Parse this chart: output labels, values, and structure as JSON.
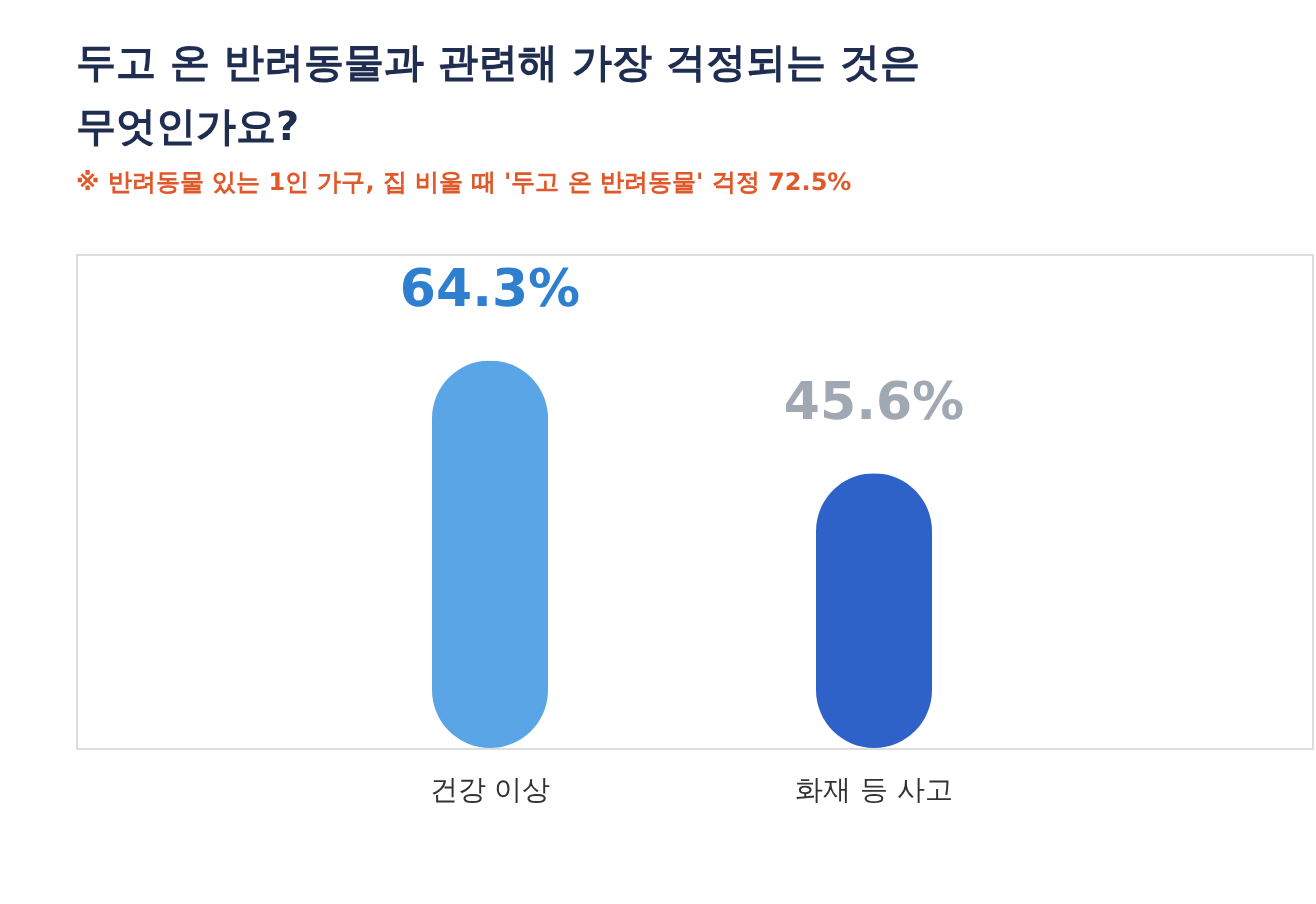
{
  "chart_data": {
    "type": "bar",
    "title": [
      "두고 온 반려동물과 관련해 가장 걱정되는 것은",
      "무엇인가요?"
    ],
    "subtitle": "※ 반려동물 있는 1인 가구, 집 비울 때 '두고 온 반려동물' 걱정 72.5%",
    "categories": [
      "건강 이상",
      "화재 등 사고"
    ],
    "values": [
      64.3,
      45.6
    ],
    "colors": [
      "#5aa5e6",
      "#2f62c9"
    ],
    "value_labels": [
      "64.3%",
      "45.6%"
    ]
  }
}
